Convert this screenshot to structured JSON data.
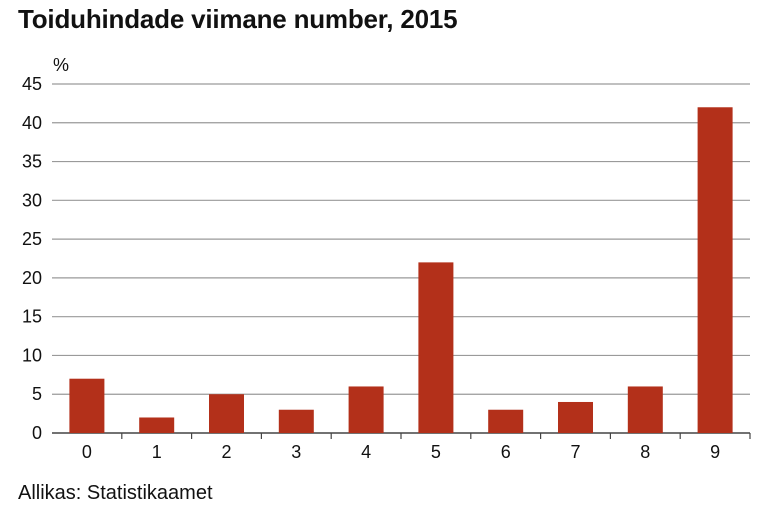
{
  "chart_data": {
    "type": "bar",
    "title": "Toiduhindade viimane number, 2015",
    "ylabel": "%",
    "xlabel": "",
    "categories": [
      "0",
      "1",
      "2",
      "3",
      "4",
      "5",
      "6",
      "7",
      "8",
      "9"
    ],
    "values": [
      7,
      2,
      5,
      3,
      6,
      22,
      3,
      4,
      6,
      42
    ],
    "ylim": [
      0,
      45
    ],
    "yticks": [
      0,
      5,
      10,
      15,
      20,
      25,
      30,
      35,
      40,
      45
    ],
    "grid": true,
    "legend": "none",
    "bar_color": "#b3301a",
    "source": "Allikas: Statistikaamet"
  }
}
